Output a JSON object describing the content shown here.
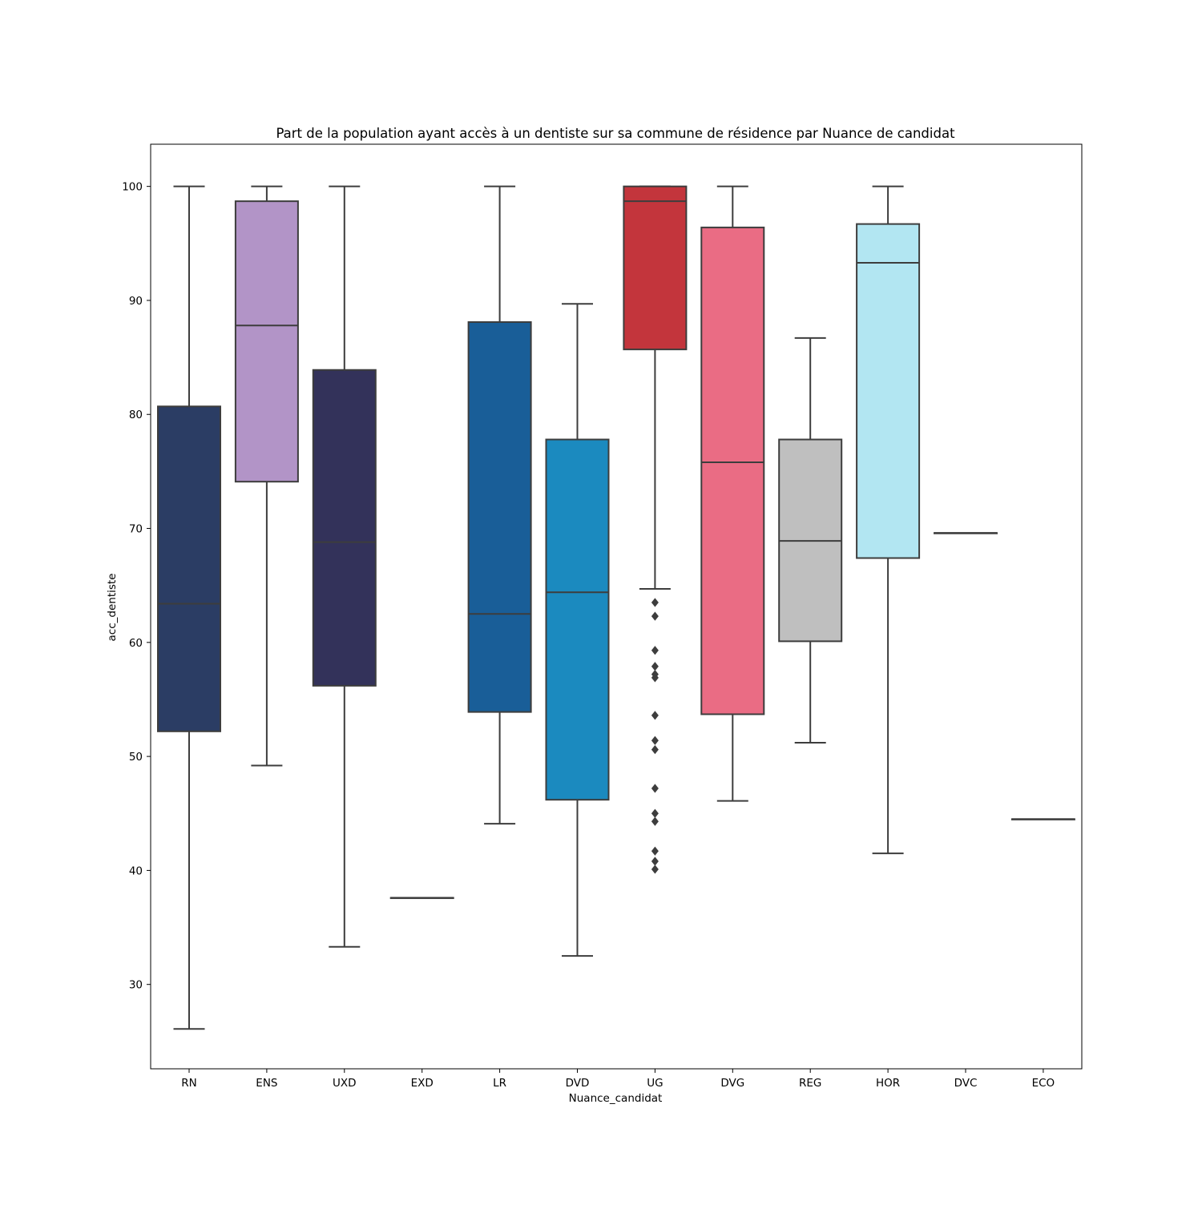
{
  "chart_data": {
    "type": "box",
    "title": "Part de la population ayant accès à un dentiste sur sa commune de résidence  par Nuance de candidat",
    "xlabel": "Nuance_candidat",
    "ylabel": "acc_dentiste",
    "ylim": [
      22.6,
      103.7
    ],
    "yticks": [
      30,
      40,
      50,
      60,
      70,
      80,
      90,
      100
    ],
    "grid": false,
    "categories": [
      "RN",
      "ENS",
      "UXD",
      "EXD",
      "LR",
      "DVD",
      "UG",
      "DVG",
      "REG",
      "HOR",
      "DVC",
      "ECO"
    ],
    "boxes": [
      {
        "category": "RN",
        "color": "#2b3d64",
        "whisker_low": 26.1,
        "q1": 52.2,
        "median": 63.4,
        "q3": 80.7,
        "whisker_high": 100,
        "outliers": []
      },
      {
        "category": "ENS",
        "color": "#b294c7",
        "whisker_low": 49.2,
        "q1": 74.1,
        "median": 87.8,
        "q3": 98.7,
        "whisker_high": 100,
        "outliers": []
      },
      {
        "category": "UXD",
        "color": "#33325a",
        "whisker_low": 33.3,
        "q1": 56.2,
        "median": 68.8,
        "q3": 83.9,
        "whisker_high": 100,
        "outliers": []
      },
      {
        "category": "EXD",
        "color": "#4b3b2f",
        "whisker_low": 37.6,
        "q1": 37.6,
        "median": 37.6,
        "q3": 37.6,
        "whisker_high": 37.6,
        "outliers": []
      },
      {
        "category": "LR",
        "color": "#195e98",
        "whisker_low": 44.1,
        "q1": 53.9,
        "median": 62.5,
        "q3": 88.1,
        "whisker_high": 100,
        "outliers": []
      },
      {
        "category": "DVD",
        "color": "#1b8abf",
        "whisker_low": 32.5,
        "q1": 46.2,
        "median": 64.4,
        "q3": 77.8,
        "whisker_high": 89.7,
        "outliers": []
      },
      {
        "category": "UG",
        "color": "#c3353c",
        "whisker_low": 64.7,
        "q1": 85.7,
        "median": 98.7,
        "q3": 100,
        "whisker_high": 100,
        "outliers": [
          63.5,
          62.3,
          59.3,
          57.9,
          57.2,
          56.9,
          53.6,
          51.4,
          50.6,
          47.2,
          45.0,
          44.3,
          41.7,
          40.8,
          40.1
        ]
      },
      {
        "category": "DVG",
        "color": "#ea6c84",
        "whisker_low": 46.1,
        "q1": 53.7,
        "median": 75.8,
        "q3": 96.4,
        "whisker_high": 100,
        "outliers": []
      },
      {
        "category": "REG",
        "color": "#bfbfbf",
        "whisker_low": 51.2,
        "q1": 60.1,
        "median": 68.9,
        "q3": 77.8,
        "whisker_high": 86.7,
        "outliers": []
      },
      {
        "category": "HOR",
        "color": "#b2e6f2",
        "whisker_low": 41.5,
        "q1": 67.4,
        "median": 93.3,
        "q3": 96.7,
        "whisker_high": 100,
        "outliers": []
      },
      {
        "category": "DVC",
        "color": "#6a6a6a",
        "whisker_low": 69.6,
        "q1": 69.6,
        "median": 69.6,
        "q3": 69.6,
        "whisker_high": 69.6,
        "outliers": []
      },
      {
        "category": "ECO",
        "color": "#4a9c4f",
        "whisker_low": 44.5,
        "q1": 44.5,
        "median": 44.5,
        "q3": 44.5,
        "whisker_high": 44.5,
        "outliers": []
      }
    ]
  }
}
